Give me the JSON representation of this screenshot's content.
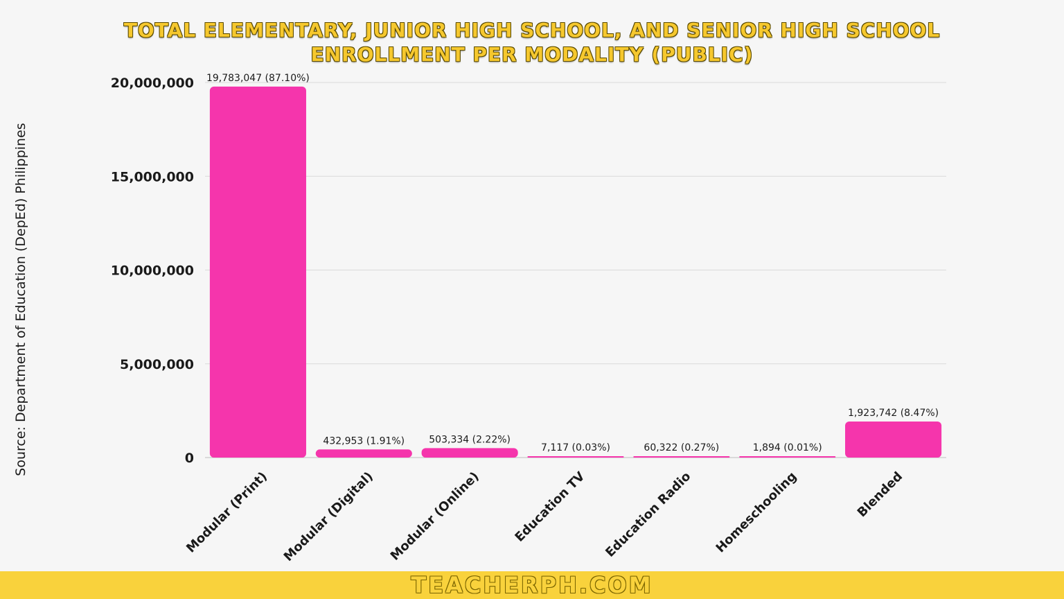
{
  "title_line1": "TOTAL ELEMENTARY, JUNIOR HIGH SCHOOL, AND SENIOR HIGH SCHOOL",
  "title_line2": "ENROLLMENT PER MODALITY (PUBLIC)",
  "source_label": "Source:",
  "source_text": "Department of Education (DepEd) Philippines",
  "footer_text": "TEACHERPH.COM",
  "colors": {
    "bar": "#f535ac",
    "title": "#f6c82e",
    "footer_bg": "#f9d23c",
    "grid": "#d9d9d9"
  },
  "chart_data": {
    "type": "bar",
    "title": "TOTAL ELEMENTARY, JUNIOR HIGH SCHOOL, AND SENIOR HIGH SCHOOL ENROLLMENT PER MODALITY (PUBLIC)",
    "categories": [
      "Modular (Print)",
      "Modular (Digital)",
      "Modular (Online)",
      "Education TV",
      "Education Radio",
      "Homeschooling",
      "Blended"
    ],
    "values": [
      19783047,
      432953,
      503334,
      7117,
      60322,
      1894,
      1923742
    ],
    "data_labels": [
      "19,783,047 (87.10%)",
      "432,953 (1.91%)",
      "503,334 (2.22%)",
      "7,117 (0.03%)",
      "60,322 (0.27%)",
      "1,894 (0.01%)",
      "1,923,742 (8.47%)"
    ],
    "y_ticks": [
      0,
      5000000,
      10000000,
      15000000,
      20000000
    ],
    "y_tick_labels": [
      "0",
      "5,000,000",
      "10,000,000",
      "15,000,000",
      "20,000,000"
    ],
    "ylim": [
      0,
      20000000
    ],
    "grid": true,
    "legend": "none"
  }
}
